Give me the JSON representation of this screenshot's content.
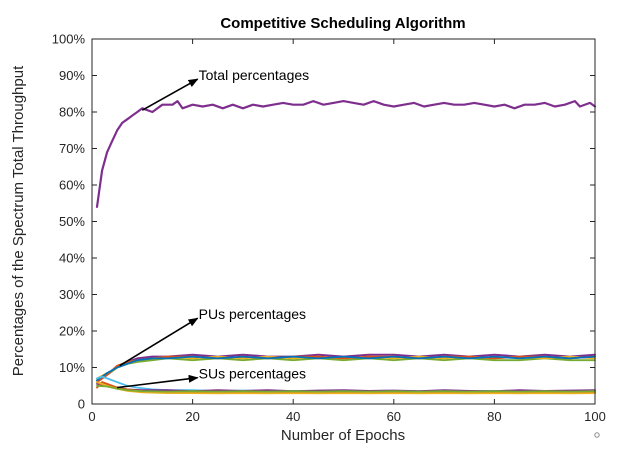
{
  "chart_data": {
    "type": "line",
    "title": "Competitive Scheduling Algorithm",
    "xlabel": "Number of Epochs",
    "ylabel": "Percentages of the Spectrum Total Throughput",
    "xlim": [
      0,
      100
    ],
    "ylim": [
      0,
      100
    ],
    "x_ticks": [
      0,
      20,
      40,
      60,
      80,
      100
    ],
    "x_tick_labels": [
      "0",
      "20",
      "40",
      "60",
      "80",
      "100"
    ],
    "y_ticks": [
      0,
      10,
      20,
      30,
      40,
      50,
      60,
      70,
      80,
      90,
      100
    ],
    "y_tick_labels": [
      "0",
      "10%",
      "20%",
      "30%",
      "40%",
      "50%",
      "60%",
      "70%",
      "80%",
      "90%",
      "100%"
    ],
    "grid": false,
    "series": [
      {
        "group": "total",
        "color": "#7e2f8e",
        "width": 2.2,
        "points": [
          [
            1,
            54
          ],
          [
            2,
            64
          ],
          [
            3,
            69
          ],
          [
            4,
            72
          ],
          [
            5,
            75
          ],
          [
            6,
            77
          ],
          [
            7,
            78
          ],
          [
            8,
            79
          ],
          [
            9,
            80
          ],
          [
            10,
            81
          ],
          [
            12,
            80
          ],
          [
            14,
            82
          ],
          [
            16,
            82
          ],
          [
            17,
            83
          ],
          [
            18,
            81
          ],
          [
            20,
            82
          ],
          [
            22,
            81.5
          ],
          [
            24,
            82
          ],
          [
            26,
            81
          ],
          [
            28,
            82
          ],
          [
            30,
            81
          ],
          [
            32,
            82
          ],
          [
            34,
            81.5
          ],
          [
            36,
            82
          ],
          [
            38,
            82.5
          ],
          [
            40,
            82
          ],
          [
            42,
            82
          ],
          [
            44,
            83
          ],
          [
            46,
            82
          ],
          [
            48,
            82.5
          ],
          [
            50,
            83
          ],
          [
            52,
            82.5
          ],
          [
            54,
            82
          ],
          [
            56,
            83
          ],
          [
            58,
            82
          ],
          [
            60,
            81.5
          ],
          [
            62,
            82
          ],
          [
            64,
            82.5
          ],
          [
            66,
            81.5
          ],
          [
            68,
            82
          ],
          [
            70,
            82.5
          ],
          [
            72,
            82
          ],
          [
            74,
            82
          ],
          [
            76,
            82.5
          ],
          [
            78,
            82
          ],
          [
            80,
            81.5
          ],
          [
            82,
            82
          ],
          [
            84,
            81
          ],
          [
            86,
            82
          ],
          [
            88,
            82
          ],
          [
            90,
            82.5
          ],
          [
            92,
            81.5
          ],
          [
            94,
            82
          ],
          [
            96,
            83
          ],
          [
            97,
            81.5
          ],
          [
            99,
            82.5
          ],
          [
            100,
            81.5
          ]
        ]
      },
      {
        "group": "pus",
        "color": "#7e2f8e",
        "width": 2,
        "points": [
          [
            1,
            6
          ],
          [
            3,
            8
          ],
          [
            5,
            10
          ],
          [
            7,
            11.5
          ],
          [
            9,
            12.5
          ],
          [
            12,
            13
          ],
          [
            15,
            13
          ],
          [
            20,
            13.5
          ],
          [
            25,
            13
          ],
          [
            30,
            13.5
          ],
          [
            35,
            13
          ],
          [
            40,
            13
          ],
          [
            45,
            13.5
          ],
          [
            50,
            13
          ],
          [
            55,
            13.5
          ],
          [
            60,
            13.5
          ],
          [
            65,
            13
          ],
          [
            70,
            13.5
          ],
          [
            75,
            13
          ],
          [
            80,
            13.5
          ],
          [
            85,
            13
          ],
          [
            90,
            13.5
          ],
          [
            95,
            13
          ],
          [
            100,
            13.5
          ]
        ]
      },
      {
        "group": "pus",
        "color": "#77ac30",
        "width": 1.8,
        "points": [
          [
            1,
            6.5
          ],
          [
            3,
            8
          ],
          [
            5,
            10
          ],
          [
            7,
            11
          ],
          [
            9,
            11.5
          ],
          [
            12,
            12
          ],
          [
            15,
            12.5
          ],
          [
            20,
            12
          ],
          [
            25,
            12.5
          ],
          [
            30,
            12
          ],
          [
            35,
            12.5
          ],
          [
            40,
            12
          ],
          [
            45,
            12.5
          ],
          [
            50,
            12
          ],
          [
            55,
            12.5
          ],
          [
            60,
            12
          ],
          [
            65,
            12.5
          ],
          [
            70,
            12
          ],
          [
            75,
            12.5
          ],
          [
            80,
            12
          ],
          [
            85,
            12
          ],
          [
            90,
            12.5
          ],
          [
            95,
            12
          ],
          [
            100,
            12
          ]
        ]
      },
      {
        "group": "pus",
        "color": "#edb120",
        "width": 1.8,
        "points": [
          [
            1,
            7
          ],
          [
            3,
            8.5
          ],
          [
            5,
            10
          ],
          [
            7,
            11
          ],
          [
            9,
            12
          ],
          [
            12,
            12.5
          ],
          [
            15,
            13
          ],
          [
            20,
            12.5
          ],
          [
            25,
            13
          ],
          [
            30,
            12.5
          ],
          [
            35,
            13
          ],
          [
            40,
            12.5
          ],
          [
            45,
            13
          ],
          [
            50,
            12.5
          ],
          [
            55,
            13
          ],
          [
            60,
            12.5
          ],
          [
            65,
            13
          ],
          [
            70,
            12.5
          ],
          [
            75,
            13
          ],
          [
            80,
            12.5
          ],
          [
            85,
            13
          ],
          [
            90,
            12.5
          ],
          [
            95,
            13
          ],
          [
            100,
            12.5
          ]
        ]
      },
      {
        "group": "pus",
        "color": "#d95319",
        "width": 1.8,
        "points": [
          [
            1,
            6
          ],
          [
            3,
            8
          ],
          [
            5,
            10.5
          ],
          [
            7,
            11.5
          ],
          [
            9,
            12
          ],
          [
            12,
            12.5
          ],
          [
            15,
            13
          ],
          [
            20,
            13
          ],
          [
            25,
            12.5
          ],
          [
            30,
            13
          ],
          [
            35,
            12.5
          ],
          [
            40,
            13
          ],
          [
            45,
            13
          ],
          [
            50,
            12.5
          ],
          [
            55,
            13
          ],
          [
            60,
            13
          ],
          [
            65,
            12.5
          ],
          [
            70,
            13
          ],
          [
            75,
            13
          ],
          [
            80,
            12.5
          ],
          [
            85,
            13
          ],
          [
            90,
            13
          ],
          [
            95,
            12.5
          ],
          [
            100,
            13
          ]
        ]
      },
      {
        "group": "pus",
        "color": "#0072bd",
        "width": 1.8,
        "points": [
          [
            1,
            6.5
          ],
          [
            3,
            8.5
          ],
          [
            5,
            10
          ],
          [
            7,
            11
          ],
          [
            9,
            12
          ],
          [
            12,
            12.5
          ],
          [
            15,
            12.5
          ],
          [
            20,
            13
          ],
          [
            25,
            12.5
          ],
          [
            30,
            13
          ],
          [
            35,
            12.5
          ],
          [
            40,
            13
          ],
          [
            45,
            12.5
          ],
          [
            50,
            13
          ],
          [
            55,
            12.5
          ],
          [
            60,
            13
          ],
          [
            65,
            12.5
          ],
          [
            70,
            13
          ],
          [
            75,
            12.5
          ],
          [
            80,
            13
          ],
          [
            85,
            12.5
          ],
          [
            90,
            13
          ],
          [
            95,
            12.5
          ],
          [
            100,
            13
          ]
        ]
      },
      {
        "group": "sus",
        "color": "#4dbeee",
        "width": 1.8,
        "points": [
          [
            1,
            7
          ],
          [
            2,
            7.5
          ],
          [
            3,
            7
          ],
          [
            5,
            6
          ],
          [
            7,
            5
          ],
          [
            9,
            4.5
          ],
          [
            12,
            4
          ],
          [
            15,
            3.8
          ],
          [
            20,
            3.8
          ],
          [
            25,
            3.5
          ],
          [
            30,
            3.7
          ],
          [
            35,
            3.5
          ],
          [
            40,
            3.6
          ],
          [
            45,
            3.5
          ],
          [
            50,
            3.7
          ],
          [
            55,
            3.5
          ],
          [
            60,
            3.6
          ],
          [
            65,
            3.5
          ],
          [
            70,
            3.6
          ],
          [
            75,
            3.5
          ],
          [
            80,
            3.6
          ],
          [
            85,
            3.5
          ],
          [
            90,
            3.6
          ],
          [
            95,
            3.5
          ],
          [
            100,
            3.6
          ]
        ]
      },
      {
        "group": "sus",
        "color": "#7e2f8e",
        "width": 1.8,
        "points": [
          [
            1,
            5.5
          ],
          [
            3,
            5
          ],
          [
            5,
            4.5
          ],
          [
            7,
            4
          ],
          [
            10,
            3.8
          ],
          [
            15,
            3.8
          ],
          [
            20,
            3.5
          ],
          [
            25,
            3.8
          ],
          [
            30,
            3.6
          ],
          [
            35,
            3.8
          ],
          [
            40,
            3.5
          ],
          [
            45,
            3.7
          ],
          [
            50,
            3.8
          ],
          [
            55,
            3.6
          ],
          [
            60,
            3.7
          ],
          [
            65,
            3.5
          ],
          [
            70,
            3.8
          ],
          [
            75,
            3.6
          ],
          [
            80,
            3.5
          ],
          [
            85,
            3.8
          ],
          [
            90,
            3.6
          ],
          [
            95,
            3.7
          ],
          [
            100,
            3.8
          ]
        ]
      },
      {
        "group": "sus",
        "color": "#d95319",
        "width": 1.8,
        "points": [
          [
            1,
            4.5
          ],
          [
            2,
            6
          ],
          [
            3,
            5.5
          ],
          [
            5,
            4.5
          ],
          [
            7,
            4
          ],
          [
            10,
            3.5
          ],
          [
            15,
            3.3
          ],
          [
            20,
            3.2
          ],
          [
            25,
            3.4
          ],
          [
            30,
            3.2
          ],
          [
            35,
            3.4
          ],
          [
            40,
            3.2
          ],
          [
            45,
            3.3
          ],
          [
            50,
            3.2
          ],
          [
            55,
            3.4
          ],
          [
            60,
            3.2
          ],
          [
            65,
            3.3
          ],
          [
            70,
            3.2
          ],
          [
            75,
            3.4
          ],
          [
            80,
            3.2
          ],
          [
            85,
            3.3
          ],
          [
            90,
            3.2
          ],
          [
            95,
            3.4
          ],
          [
            100,
            3.2
          ]
        ]
      },
      {
        "group": "sus",
        "color": "#edb120",
        "width": 1.8,
        "points": [
          [
            1,
            6
          ],
          [
            3,
            5
          ],
          [
            5,
            4.2
          ],
          [
            7,
            3.6
          ],
          [
            10,
            3.2
          ],
          [
            15,
            3
          ],
          [
            20,
            3
          ],
          [
            25,
            2.9
          ],
          [
            30,
            3
          ],
          [
            35,
            2.9
          ],
          [
            40,
            3
          ],
          [
            45,
            2.9
          ],
          [
            50,
            3
          ],
          [
            55,
            2.9
          ],
          [
            60,
            3
          ],
          [
            65,
            2.9
          ],
          [
            70,
            3
          ],
          [
            75,
            2.9
          ],
          [
            80,
            3
          ],
          [
            85,
            2.9
          ],
          [
            90,
            3
          ],
          [
            95,
            2.9
          ],
          [
            100,
            3
          ]
        ]
      },
      {
        "group": "sus",
        "color": "#77ac30",
        "width": 1.8,
        "points": [
          [
            1,
            5
          ],
          [
            3,
            4.8
          ],
          [
            5,
            4.2
          ],
          [
            7,
            3.8
          ],
          [
            10,
            3.5
          ],
          [
            15,
            3.4
          ],
          [
            20,
            3.5
          ],
          [
            25,
            3.4
          ],
          [
            30,
            3.5
          ],
          [
            35,
            3.4
          ],
          [
            40,
            3.5
          ],
          [
            45,
            3.4
          ],
          [
            50,
            3.5
          ],
          [
            55,
            3.4
          ],
          [
            60,
            3.5
          ],
          [
            65,
            3.4
          ],
          [
            70,
            3.5
          ],
          [
            75,
            3.4
          ],
          [
            80,
            3.5
          ],
          [
            85,
            3.4
          ],
          [
            90,
            3.5
          ],
          [
            95,
            3.4
          ],
          [
            100,
            3.5
          ]
        ]
      }
    ],
    "annotations": [
      {
        "text": "Total percentages",
        "from": [
          10,
          80.5
        ],
        "to": [
          21,
          89
        ]
      },
      {
        "text": "PUs percentages",
        "from": [
          5.5,
          10.5
        ],
        "to": [
          21,
          23.5
        ]
      },
      {
        "text": "SUs percentages",
        "from": [
          5,
          4.5
        ],
        "to": [
          21,
          7.2
        ]
      }
    ]
  }
}
